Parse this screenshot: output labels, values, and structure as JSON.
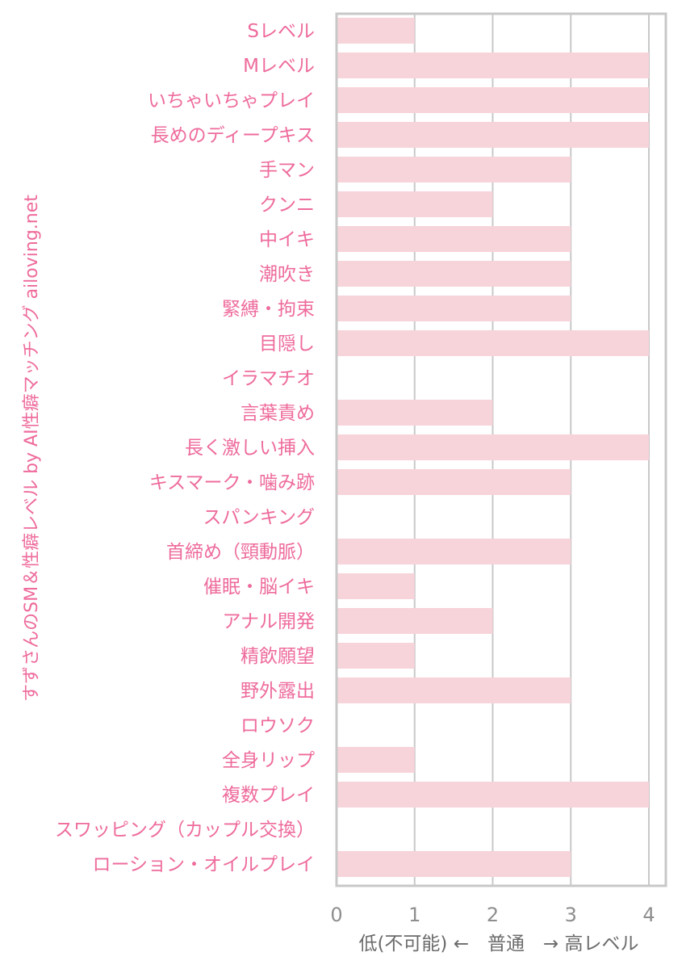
{
  "chart_data": {
    "type": "bar",
    "orientation": "horizontal",
    "title": "すずさんのSM＆性癖レベル by AI性癖マッチング ailoving.net",
    "xlabel": "低(不可能) ←　普通　→ 高レベル",
    "ylabel": "",
    "xlim": [
      0,
      4.2
    ],
    "xticks": [
      0,
      1,
      2,
      3,
      4
    ],
    "xtick_labels": [
      "0",
      "1",
      "2",
      "3",
      "4"
    ],
    "grid": "vertical",
    "categories": [
      "Sレベル",
      "Mレベル",
      "いちゃいちゃプレイ",
      "長めのディープキス",
      "手マン",
      "クンニ",
      "中イキ",
      "潮吹き",
      "緊縛・拘束",
      "目隠し",
      "イラマチオ",
      "言葉責め",
      "長く激しい挿入",
      "キスマーク・噛み跡",
      "スパンキング",
      "首締め（頸動脈）",
      "催眠・脳イキ",
      "アナル開発",
      "精飲願望",
      "野外露出",
      "ロウソク",
      "全身リップ",
      "複数プレイ",
      "スワッピング（カップル交換）",
      "ローション・オイルプレイ"
    ],
    "values": [
      1,
      4,
      4,
      4,
      3,
      2,
      3,
      3,
      3,
      4,
      0,
      2,
      4,
      3,
      0,
      3,
      1,
      2,
      1,
      3,
      0,
      1,
      4,
      0,
      3
    ],
    "colors": {
      "bar": "#f7d3da",
      "label": "#ee6b9c",
      "grid": "#c8c8c8",
      "frame": "#c8c8c8",
      "tick": "#8e8e8e",
      "xlabel": "#6b6b6b"
    }
  }
}
